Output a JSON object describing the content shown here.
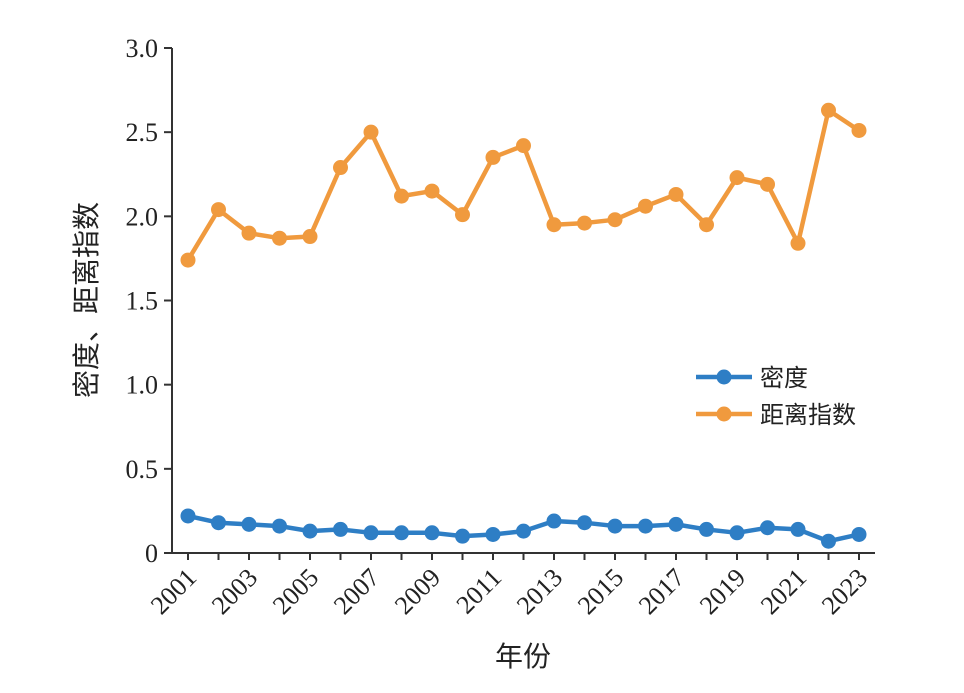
{
  "chart_data": {
    "type": "line",
    "xlabel": "年份",
    "ylabel": "密度、距离指数",
    "ylim": [
      0,
      3.0
    ],
    "yticks": [
      "0",
      "0.5",
      "1.0",
      "1.5",
      "2.0",
      "2.5",
      "3.0"
    ],
    "ytick_values": [
      0,
      0.5,
      1.0,
      1.5,
      2.0,
      2.5,
      3.0
    ],
    "x": [
      2001,
      2002,
      2003,
      2004,
      2005,
      2006,
      2007,
      2008,
      2009,
      2010,
      2011,
      2012,
      2013,
      2014,
      2015,
      2016,
      2017,
      2018,
      2019,
      2020,
      2021,
      2022,
      2023
    ],
    "xticks": [
      "2001",
      "2003",
      "2005",
      "2007",
      "2009",
      "2011",
      "2013",
      "2015",
      "2017",
      "2019",
      "2021",
      "2023"
    ],
    "grid": false,
    "legend_position": "right",
    "series": [
      {
        "name": "密度",
        "color": "#2e7ec5",
        "values": [
          0.22,
          0.18,
          0.17,
          0.16,
          0.13,
          0.14,
          0.12,
          0.12,
          0.12,
          0.1,
          0.11,
          0.13,
          0.19,
          0.18,
          0.16,
          0.16,
          0.17,
          0.14,
          0.12,
          0.15,
          0.14,
          0.07,
          0.11
        ]
      },
      {
        "name": "距离指数",
        "color": "#f09a3e",
        "values": [
          1.74,
          2.04,
          1.9,
          1.87,
          1.88,
          2.29,
          2.5,
          2.12,
          2.15,
          2.01,
          2.35,
          2.42,
          1.95,
          1.96,
          1.98,
          2.06,
          2.13,
          1.95,
          2.23,
          2.19,
          1.84,
          2.63,
          2.51
        ]
      }
    ]
  }
}
